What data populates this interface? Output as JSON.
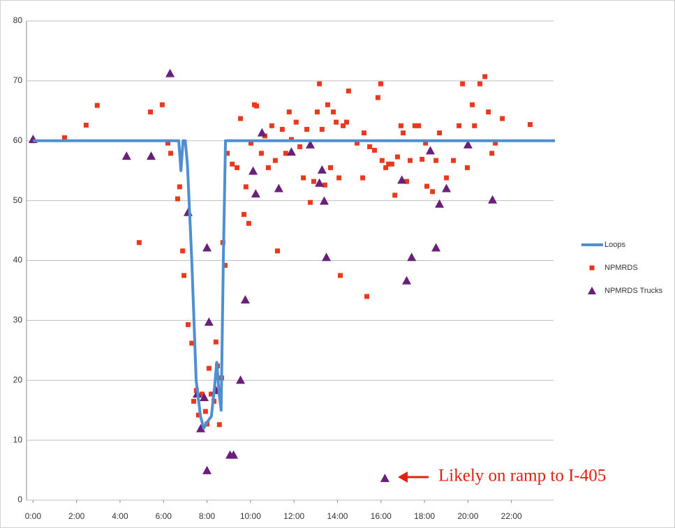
{
  "chart_data": {
    "type": "scatter",
    "xlim": [
      -0.3,
      24
    ],
    "ylim": [
      0,
      80
    ],
    "xticks": [
      {
        "value": 0,
        "label": "0:00"
      },
      {
        "value": 2,
        "label": "2:00"
      },
      {
        "value": 4,
        "label": "4:00"
      },
      {
        "value": 6,
        "label": "6:00"
      },
      {
        "value": 8,
        "label": "8:00"
      },
      {
        "value": 10,
        "label": "10:00"
      },
      {
        "value": 12,
        "label": "12:00"
      },
      {
        "value": 14,
        "label": "14:00"
      },
      {
        "value": 16,
        "label": "16:00"
      },
      {
        "value": 18,
        "label": "18:00"
      },
      {
        "value": 20,
        "label": "20:00"
      },
      {
        "value": 22,
        "label": "22:00"
      }
    ],
    "yticks": [
      0,
      10,
      20,
      30,
      40,
      50,
      60,
      70,
      80
    ],
    "grid": true,
    "legend": "right",
    "annotation": "Likely on ramp to I-405",
    "series": [
      {
        "name": "Loops",
        "color": "#4f8fd0",
        "marker": "line",
        "x": [
          0,
          6.7,
          6.8,
          6.9,
          7.0,
          7.1,
          7.3,
          7.5,
          7.7,
          7.85,
          8.0,
          8.2,
          8.35,
          8.45,
          8.55,
          8.65,
          8.75,
          8.85,
          24
        ],
        "values": [
          60,
          60,
          55,
          60,
          60,
          56,
          40,
          20,
          14,
          12,
          13,
          14,
          19,
          23,
          18,
          15,
          40,
          60,
          60
        ]
      },
      {
        "name": "NPMRDS",
        "color": "#e8391e",
        "marker": "square",
        "x": [
          0,
          1.45,
          2.44,
          2.95,
          4.88,
          5.4,
          5.94,
          6.2,
          6.33,
          6.65,
          6.74,
          6.88,
          6.94,
          7.13,
          7.3,
          7.39,
          7.51,
          7.61,
          7.77,
          7.93,
          8.0,
          8.09,
          8.19,
          8.32,
          8.41,
          8.48,
          8.57,
          8.67,
          8.73,
          8.83,
          8.93,
          9.16,
          9.38,
          9.54,
          9.7,
          9.79,
          9.92,
          10.02,
          10.18,
          10.28,
          10.5,
          10.66,
          10.82,
          10.98,
          11.14,
          11.24,
          11.46,
          11.62,
          11.78,
          11.88,
          12.1,
          12.27,
          12.43,
          12.59,
          12.75,
          12.91,
          13.07,
          13.17,
          13.29,
          13.42,
          13.55,
          13.68,
          13.81,
          13.94,
          14.07,
          14.13,
          14.26,
          14.42,
          14.51,
          14.9,
          15.16,
          15.22,
          15.35,
          15.48,
          15.7,
          15.86,
          15.99,
          16.05,
          16.22,
          16.35,
          16.5,
          16.64,
          16.76,
          16.92,
          17.02,
          17.18,
          17.34,
          17.56,
          17.73,
          17.89,
          18.05,
          18.11,
          18.37,
          18.53,
          18.69,
          19.01,
          19.33,
          19.59,
          19.75,
          19.97,
          20.2,
          20.3,
          20.55,
          20.78,
          20.94,
          21.1,
          21.26,
          21.58,
          22.86
        ],
        "values": [
          60,
          60.5,
          62.6,
          65.9,
          43,
          64.8,
          66,
          59.6,
          57.9,
          50.3,
          52.3,
          41.6,
          37.5,
          29.3,
          26.2,
          16.5,
          18.3,
          14.2,
          17.7,
          14.8,
          12.7,
          22,
          17.7,
          16.5,
          26.4,
          22.4,
          12.6,
          20.4,
          43,
          39.2,
          57.9,
          56.1,
          55.5,
          63.7,
          47.7,
          52.3,
          46.2,
          59.6,
          66,
          65.8,
          57.9,
          60.8,
          55.5,
          62.5,
          56.7,
          41.6,
          61.9,
          57.9,
          64.8,
          60.2,
          63.1,
          59,
          53.8,
          61.9,
          49.7,
          53.2,
          64.8,
          69.5,
          61.9,
          52.6,
          66,
          55.5,
          64.8,
          63.1,
          53.8,
          37.5,
          62.5,
          63.1,
          68.3,
          59.6,
          53.8,
          61.3,
          34,
          59,
          58.4,
          67.2,
          69.5,
          56.7,
          55.5,
          56.1,
          56.1,
          50.9,
          57.3,
          62.5,
          61.3,
          53.2,
          56.7,
          62.5,
          62.5,
          56.9,
          59.6,
          52.4,
          51.5,
          56.7,
          61.3,
          53.8,
          56.7,
          62.5,
          69.5,
          55.5,
          66,
          62.5,
          69.5,
          70.7,
          64.8,
          57.9,
          59.6,
          63.7,
          62.7
        ]
      },
      {
        "name": "NPMRDS Trucks",
        "color": "#6a1f7a",
        "marker": "triangle",
        "x": [
          0,
          4.3,
          5.43,
          6.3,
          7.13,
          7.55,
          7.71,
          7.87,
          8.0,
          8.0,
          8.09,
          8.41,
          9.06,
          9.22,
          9.54,
          9.76,
          10.12,
          10.24,
          10.53,
          11.3,
          11.88,
          12.75,
          13.17,
          13.29,
          13.39,
          13.49,
          16.18,
          16.96,
          17.18,
          17.41,
          18.27,
          18.53,
          18.69,
          19.01,
          20.0,
          21.13
        ],
        "values": [
          60.2,
          57.4,
          57.4,
          71.2,
          48,
          17.7,
          11.9,
          17.1,
          42.1,
          4.9,
          29.7,
          18.3,
          7.5,
          7.5,
          20,
          33.4,
          54.9,
          51.1,
          61.3,
          52,
          58.1,
          59.3,
          52.9,
          55.1,
          49.9,
          40.5,
          3.6,
          53.4,
          36.6,
          40.5,
          58.3,
          42.1,
          49.4,
          52,
          59.3,
          50.1
        ]
      }
    ]
  }
}
